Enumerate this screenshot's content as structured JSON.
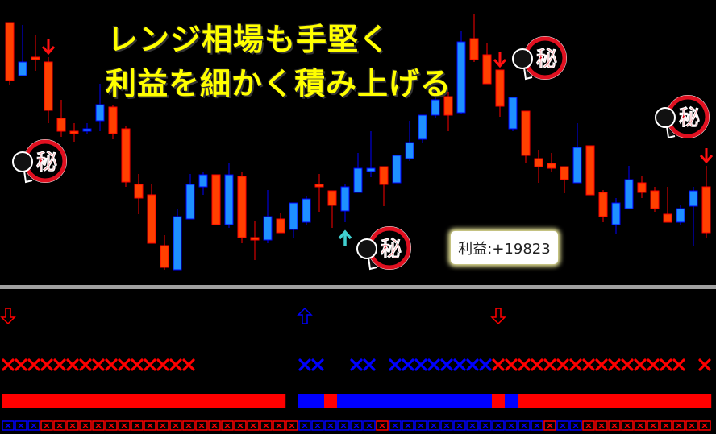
{
  "headline": {
    "line1": "レンジ相場も手堅く",
    "line2": "利益を細かく積み上げる"
  },
  "profit_label": "利益:+19823",
  "stamp_glyph": "秘",
  "colors": {
    "bear": "#ff4000",
    "bear_border": "#ff0000",
    "bull": "#1e90ff",
    "bull_border": "#0000ff",
    "signal_up": "#40d0d0",
    "headline": "#ffff00",
    "background": "#000000"
  },
  "chart_data": {
    "type": "candlestick",
    "title": "",
    "axes_visible": false,
    "grid": false,
    "candles": [
      {
        "o": 332,
        "h": 332,
        "l": 255,
        "c": 260
      },
      {
        "o": 266,
        "h": 329,
        "l": 266,
        "c": 283
      },
      {
        "o": 289,
        "h": 316,
        "l": 272,
        "c": 286
      },
      {
        "o": 283,
        "h": 289,
        "l": 207,
        "c": 223
      },
      {
        "o": 213,
        "h": 236,
        "l": 190,
        "c": 197
      },
      {
        "o": 197,
        "h": 207,
        "l": 184,
        "c": 194
      },
      {
        "o": 197,
        "h": 207,
        "l": 194,
        "c": 200
      },
      {
        "o": 210,
        "h": 256,
        "l": 197,
        "c": 230
      },
      {
        "o": 227,
        "h": 230,
        "l": 187,
        "c": 194
      },
      {
        "o": 200,
        "h": 204,
        "l": 128,
        "c": 134
      },
      {
        "o": 131,
        "h": 144,
        "l": 94,
        "c": 114
      },
      {
        "o": 118,
        "h": 131,
        "l": 58,
        "c": 58
      },
      {
        "o": 55,
        "h": 68,
        "l": 25,
        "c": 28
      },
      {
        "o": 25,
        "h": 101,
        "l": 25,
        "c": 91
      },
      {
        "o": 88,
        "h": 144,
        "l": 88,
        "c": 131
      },
      {
        "o": 128,
        "h": 147,
        "l": 118,
        "c": 143
      },
      {
        "o": 143,
        "h": 143,
        "l": 81,
        "c": 81
      },
      {
        "o": 81,
        "h": 157,
        "l": 77,
        "c": 143
      },
      {
        "o": 141,
        "h": 147,
        "l": 58,
        "c": 65
      },
      {
        "o": 65,
        "h": 85,
        "l": 37,
        "c": 62
      },
      {
        "o": 62,
        "h": 124,
        "l": 58,
        "c": 91
      },
      {
        "o": 88,
        "h": 95,
        "l": 71,
        "c": 71
      },
      {
        "o": 75,
        "h": 108,
        "l": 65,
        "c": 108
      },
      {
        "o": 84,
        "h": 116,
        "l": 80,
        "c": 113
      },
      {
        "o": 131,
        "h": 144,
        "l": 97,
        "c": 128
      },
      {
        "o": 123,
        "h": 123,
        "l": 77,
        "c": 105
      },
      {
        "o": 98,
        "h": 131,
        "l": 84,
        "c": 128
      },
      {
        "o": 121,
        "h": 170,
        "l": 121,
        "c": 151
      },
      {
        "o": 147,
        "h": 197,
        "l": 140,
        "c": 151
      },
      {
        "o": 153,
        "h": 153,
        "l": 104,
        "c": 131
      },
      {
        "o": 133,
        "h": 167,
        "l": 133,
        "c": 167
      },
      {
        "o": 163,
        "h": 210,
        "l": 160,
        "c": 183
      },
      {
        "o": 187,
        "h": 217,
        "l": 183,
        "c": 217
      },
      {
        "o": 217,
        "h": 248,
        "l": 213,
        "c": 236
      },
      {
        "o": 240,
        "h": 246,
        "l": 197,
        "c": 217
      },
      {
        "o": 220,
        "h": 322,
        "l": 218,
        "c": 308
      },
      {
        "o": 312,
        "h": 342,
        "l": 283,
        "c": 286
      },
      {
        "o": 292,
        "h": 306,
        "l": 256,
        "c": 256
      },
      {
        "o": 273,
        "h": 273,
        "l": 215,
        "c": 228
      },
      {
        "o": 200,
        "h": 239,
        "l": 197,
        "c": 239
      },
      {
        "o": 222,
        "h": 222,
        "l": 157,
        "c": 167
      },
      {
        "o": 163,
        "h": 174,
        "l": 133,
        "c": 153
      },
      {
        "o": 157,
        "h": 170,
        "l": 147,
        "c": 151
      },
      {
        "o": 153,
        "h": 153,
        "l": 120,
        "c": 137
      },
      {
        "o": 133,
        "h": 207,
        "l": 133,
        "c": 177
      },
      {
        "o": 179,
        "h": 179,
        "l": 118,
        "c": 118
      },
      {
        "o": 121,
        "h": 124,
        "l": 84,
        "c": 91
      },
      {
        "o": 81,
        "h": 114,
        "l": 70,
        "c": 108
      },
      {
        "o": 101,
        "h": 154,
        "l": 101,
        "c": 137
      },
      {
        "o": 133,
        "h": 141,
        "l": 114,
        "c": 121
      },
      {
        "o": 123,
        "h": 128,
        "l": 97,
        "c": 101
      },
      {
        "o": 94,
        "h": 128,
        "l": 84,
        "c": 84
      },
      {
        "o": 84,
        "h": 105,
        "l": 81,
        "c": 101
      },
      {
        "o": 104,
        "h": 128,
        "l": 55,
        "c": 123
      },
      {
        "o": 128,
        "h": 154,
        "l": 64,
        "c": 71
      }
    ],
    "signals": [
      {
        "candle": 4,
        "direction": "down"
      },
      {
        "candle": 27,
        "direction": "up"
      },
      {
        "candle": 39,
        "direction": "down"
      },
      {
        "candle": 55,
        "direction": "down"
      }
    ],
    "stamps_near_candles": [
      3,
      30,
      42,
      53
    ]
  },
  "indicator": {
    "hollow_arrows": [
      {
        "column": 1,
        "direction": "down",
        "color": "red"
      },
      {
        "column": 24,
        "direction": "up",
        "color": "blue"
      },
      {
        "column": 39,
        "direction": "down",
        "color": "red"
      }
    ],
    "x_marks": "RRRRRRRRRRRRRRR........BB..BB.BBBBBBBBRRRRRRRRRRRRRRR.R",
    "trend_bar": "RRRRRRRRRRRRRRRRRRRRRR.BBRBBBBBBBBBBBBRBRRRRRRRRRRRRRRR",
    "boxes": "BBBRRRRRRRRRRRRRRRRRRRRBBBBBBRBBBBBBBBBBBBRBBRRRRRRRRRR"
  }
}
